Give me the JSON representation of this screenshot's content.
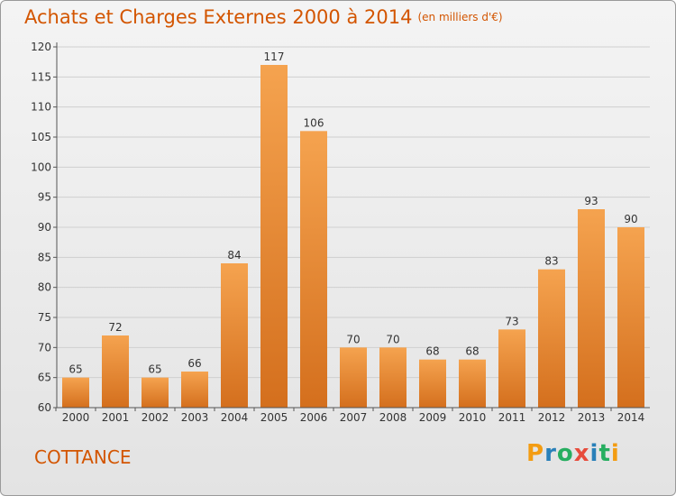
{
  "header": {
    "title": "Achats et Charges Externes 2000 à 2014",
    "unit": "(en milliers d'€)"
  },
  "footer": {
    "commune": "COTTANCE",
    "logo": {
      "letters": [
        "P",
        "r",
        "o",
        "x",
        "i",
        "t",
        "i"
      ],
      "colors": [
        "#f39c12",
        "#2980b9",
        "#27ae60",
        "#e74c3c",
        "#2980b9",
        "#27ae60",
        "#f39c12"
      ]
    }
  },
  "colors": {
    "accent": "#d35500",
    "bar_light": "#f5a34f",
    "bar_dark": "#d46f1d"
  },
  "chart_data": {
    "type": "bar",
    "title": "Achats et Charges Externes 2000 à 2014",
    "subtitle": "(en milliers d'€)",
    "xlabel": "",
    "ylabel": "",
    "categories": [
      "2000",
      "2001",
      "2002",
      "2003",
      "2004",
      "2005",
      "2006",
      "2007",
      "2008",
      "2009",
      "2010",
      "2011",
      "2012",
      "2013",
      "2014"
    ],
    "values": [
      65,
      72,
      65,
      66,
      84,
      117,
      106,
      70,
      70,
      68,
      68,
      73,
      83,
      93,
      90
    ],
    "ylim": [
      60,
      120
    ],
    "yticks": [
      60,
      65,
      70,
      75,
      80,
      85,
      90,
      95,
      100,
      105,
      110,
      115,
      120
    ],
    "grid": true
  }
}
